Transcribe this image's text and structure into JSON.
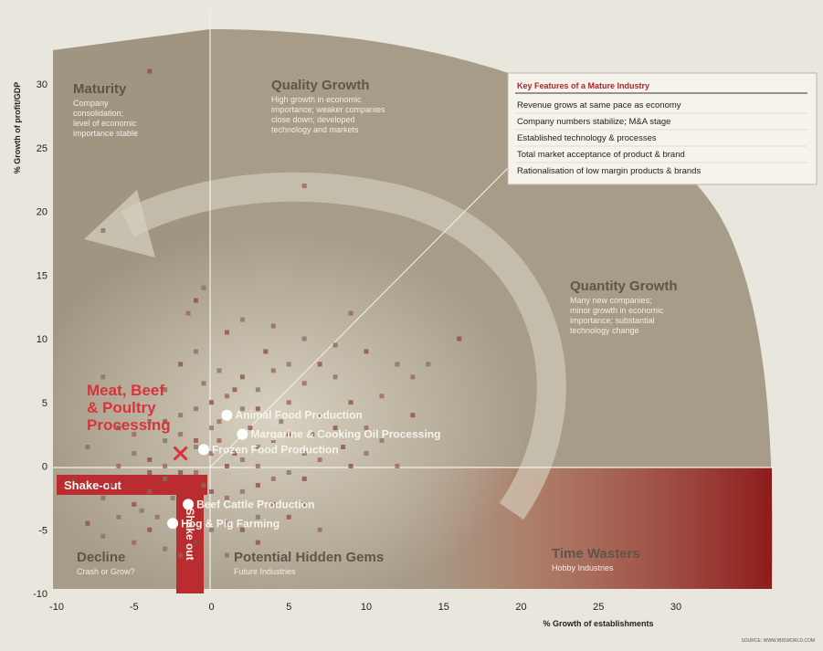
{
  "chart_data": {
    "type": "scatter",
    "xlabel": "% Growth of establishments",
    "ylabel": "% Growth of profit/GDP",
    "xlim": [
      -10,
      35
    ],
    "ylim": [
      -10,
      32
    ],
    "xticks": [
      -10,
      -5,
      0,
      5,
      10,
      15,
      20,
      25,
      30
    ],
    "yticks": [
      -10,
      -5,
      0,
      5,
      10,
      15,
      20,
      25,
      30
    ],
    "quadrants": [
      {
        "id": "maturity",
        "title": "Maturity",
        "description": [
          "Company",
          "consolidation;",
          "level of economic",
          "importance stable"
        ]
      },
      {
        "id": "quality",
        "title": "Quality Growth",
        "description": [
          "High growth in economic",
          "importance; weaker companies",
          "close down; developed",
          "technology and markets"
        ]
      },
      {
        "id": "quantity",
        "title": "Quantity Growth",
        "description": [
          "Many new companies;",
          "minor growth in economic",
          "importance; substantial",
          "technology change"
        ]
      },
      {
        "id": "decline",
        "title": "Decline",
        "description": [
          "Crash or Grow?"
        ]
      },
      {
        "id": "gems",
        "title": "Potential Hidden Gems",
        "description": [
          "Future Industries"
        ]
      },
      {
        "id": "time",
        "title": "Time Wasters",
        "description": [
          "Hobby Industries"
        ]
      }
    ],
    "shakeout_label": "Shake-out",
    "shakeout_vertical_label": "Shake out",
    "highlight": {
      "label": [
        "Meat, Beef",
        "& Poultry",
        "Processing"
      ],
      "x": -2,
      "y": 1,
      "color": "#d8343a"
    },
    "labeled_points": [
      {
        "label": "Animal Food Production",
        "x": 1,
        "y": 4
      },
      {
        "label": "Margarine & Cooking Oil Processing",
        "x": 2,
        "y": 2.5
      },
      {
        "label": "Frozen Food Production",
        "x": -0.5,
        "y": 1.3
      },
      {
        "label": "Beef Cattle Production",
        "x": -1.5,
        "y": -3
      },
      {
        "label": "Hog & Pig Farming",
        "x": -2.5,
        "y": -4.5
      }
    ],
    "background_points": [
      [
        -4,
        31
      ],
      [
        -7,
        18.5
      ],
      [
        6,
        22
      ],
      [
        -1,
        13
      ],
      [
        -0.5,
        14
      ],
      [
        -1.5,
        12
      ],
      [
        1,
        10.5
      ],
      [
        2,
        11.5
      ],
      [
        4,
        11
      ],
      [
        3.5,
        9
      ],
      [
        6,
        10
      ],
      [
        8,
        9.5
      ],
      [
        10,
        9
      ],
      [
        12,
        8
      ],
      [
        13,
        7
      ],
      [
        16,
        10
      ],
      [
        14,
        8
      ],
      [
        9,
        12
      ],
      [
        7,
        8
      ],
      [
        5,
        8
      ],
      [
        4,
        7.5
      ],
      [
        2,
        7
      ],
      [
        0.5,
        7.5
      ],
      [
        -0.5,
        6.5
      ],
      [
        1.5,
        6
      ],
      [
        3,
        6
      ],
      [
        6,
        6.5
      ],
      [
        9,
        5
      ],
      [
        8,
        7
      ],
      [
        11,
        5.5
      ],
      [
        13,
        4
      ],
      [
        11,
        2
      ],
      [
        10,
        3
      ],
      [
        8,
        3
      ],
      [
        7,
        4
      ],
      [
        5,
        5
      ],
      [
        3,
        4.5
      ],
      [
        2,
        4.5
      ],
      [
        1,
        5.5
      ],
      [
        0,
        5
      ],
      [
        -1,
        4.5
      ],
      [
        -2,
        4
      ],
      [
        -3,
        3.5
      ],
      [
        -4,
        3.5
      ],
      [
        -5,
        2.5
      ],
      [
        -6,
        3
      ],
      [
        -5,
        1
      ],
      [
        -6,
        0
      ],
      [
        -4,
        0.5
      ],
      [
        -3,
        2
      ],
      [
        -2,
        2.5
      ],
      [
        -1,
        2
      ],
      [
        0,
        3
      ],
      [
        0.5,
        2
      ],
      [
        1.5,
        1
      ],
      [
        3,
        1.5
      ],
      [
        4,
        2
      ],
      [
        5,
        2.5
      ],
      [
        6,
        1
      ],
      [
        7,
        0.5
      ],
      [
        9,
        0
      ],
      [
        10,
        1
      ],
      [
        12,
        0
      ],
      [
        6,
        -1
      ],
      [
        5,
        -0.5
      ],
      [
        4,
        -1
      ],
      [
        3,
        -1.5
      ],
      [
        2,
        -2
      ],
      [
        1,
        -2.5
      ],
      [
        0,
        -2
      ],
      [
        -0.5,
        -1.5
      ],
      [
        -1,
        -0.5
      ],
      [
        -2,
        -0.5
      ],
      [
        -3,
        -1
      ],
      [
        -4,
        -2
      ],
      [
        -5,
        -3
      ],
      [
        -6,
        -4
      ],
      [
        -7,
        -2.5
      ],
      [
        -8,
        -4.5
      ],
      [
        -7,
        -5.5
      ],
      [
        -5,
        -6
      ],
      [
        -4,
        -5
      ],
      [
        -3,
        -6.5
      ],
      [
        -2,
        -7
      ],
      [
        -1,
        -6
      ],
      [
        0,
        -5
      ],
      [
        1,
        -4.5
      ],
      [
        2,
        -5
      ],
      [
        3,
        -4
      ],
      [
        4,
        -3
      ],
      [
        5,
        -4
      ],
      [
        6,
        -3
      ],
      [
        7,
        -5
      ],
      [
        3,
        -6
      ],
      [
        1,
        -7
      ],
      [
        -8,
        1.5
      ],
      [
        -9,
        -1
      ],
      [
        -7,
        7
      ],
      [
        -3,
        6
      ],
      [
        -2,
        8
      ],
      [
        -1,
        9
      ],
      [
        0.5,
        3.5
      ],
      [
        2.5,
        3
      ],
      [
        4.5,
        3.5
      ],
      [
        6.5,
        2.5
      ],
      [
        8.5,
        1.5
      ],
      [
        -4.5,
        -3.5
      ],
      [
        -3.5,
        -4
      ],
      [
        -6.5,
        -1.5
      ],
      [
        -2.5,
        -2.5
      ],
      [
        0,
        1
      ],
      [
        1,
        0
      ],
      [
        -1,
        1.5
      ],
      [
        -3,
        0
      ],
      [
        -4,
        -0.5
      ],
      [
        2,
        0.5
      ],
      [
        3,
        0
      ]
    ]
  },
  "key_box": {
    "title": "Key Features of a Mature Industry",
    "items": [
      "Revenue grows at same pace as economy",
      "Company numbers stabilize; M&A stage",
      "Established technology & processes",
      "Total market acceptance of product & brand",
      "Rationalisation of low margin products & brands"
    ]
  },
  "source_note": "SOURCE: WWW.IBISWORLD.COM",
  "colors": {
    "panel": "#a69c88",
    "panel_dark": "#948a76",
    "highlight": "#d8343a",
    "shakeout": "#b92d30",
    "arc": "#c9c2b2",
    "background": "#e9e6dd"
  }
}
